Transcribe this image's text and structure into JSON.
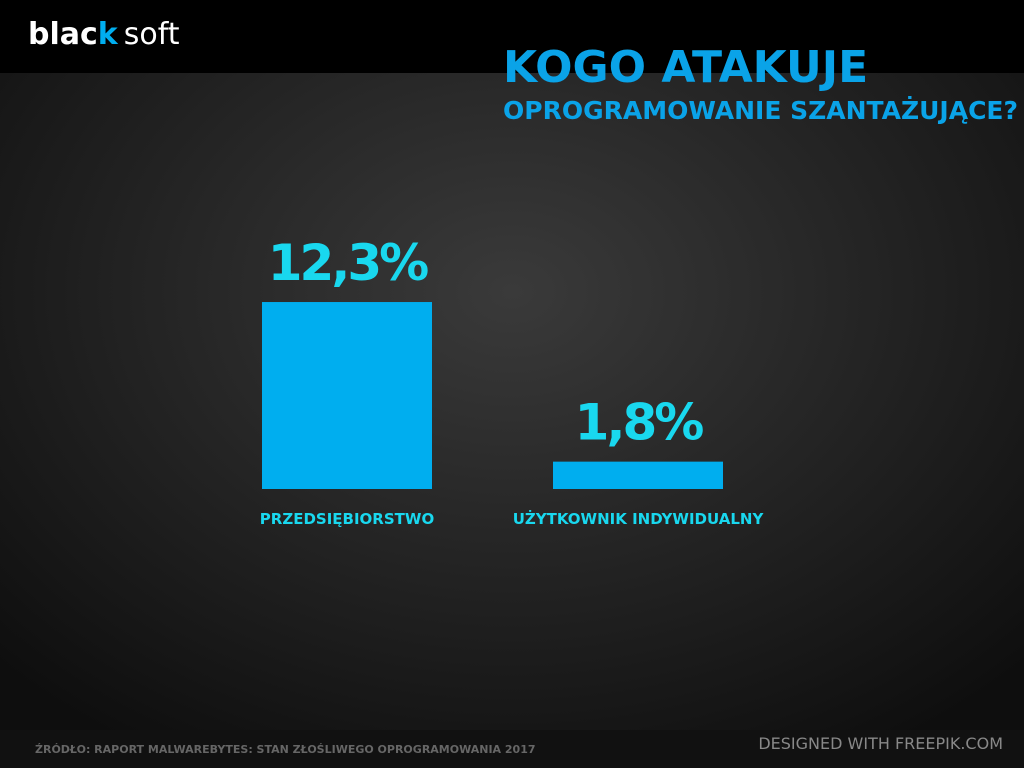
{
  "header": {
    "logo": [
      "blac",
      "k",
      "soft"
    ]
  },
  "chart_data": {
    "type": "bar",
    "title": "KOGO ATAKUJE",
    "subtitle": "OPROGRAMOWANIE SZANTAŻUJĄCE?",
    "categories": [
      "PRZEDSIĘBIORSTWO",
      "UŻYTKOWNIK INDYWIDUALNY"
    ],
    "values": [
      12.3,
      1.8
    ],
    "value_labels": [
      "12,3%",
      "1,8%"
    ],
    "color": "#00aeef",
    "source": "ŹRÓDŁO: RAPORT MALWAREBYTES: STAN ZŁOŚLIWEGO OPROGRAMOWANIA 2017"
  },
  "footer": {
    "credit": "DESIGNED WITH FREEPIK.COM"
  }
}
